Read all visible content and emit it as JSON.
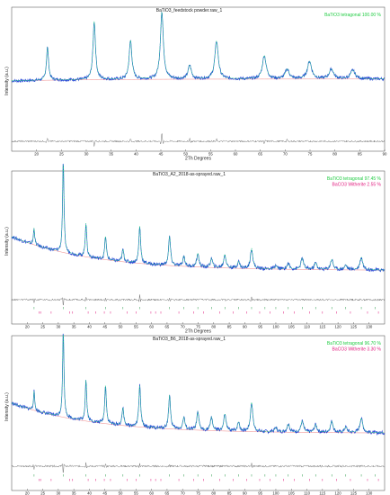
{
  "colors": {
    "observed": "#2346d6",
    "calculated": "#22cc88",
    "difference": "#777777",
    "baseline": "#e85a5a",
    "tetragonal_legend": "#22cc44",
    "witherite_legend": "#e0197d",
    "tetragonal_ticks": "#2a9a4a",
    "witherite_ticks": "#e0197d",
    "axis": "#444444"
  },
  "chart_data": [
    {
      "type": "line",
      "title": "BaTiO3_feedstock powder.raw_1",
      "xlabel": "2Th Degrees",
      "ylabel": "Intensity (a.u.)",
      "xlim": [
        15,
        90
      ],
      "ylim": [
        0,
        100
      ],
      "xticks": [
        20,
        25,
        30,
        35,
        40,
        45,
        50,
        55,
        60,
        65,
        70,
        75,
        80,
        85,
        90
      ],
      "legend_position": "top-right",
      "legend": [
        {
          "label": "BaTiO3 tetragonal  100.00 %",
          "color": "tetragonal_legend"
        }
      ],
      "background": {
        "start": 26,
        "end": 28
      },
      "peaks": [
        {
          "x": 22.2,
          "height": 34
        },
        {
          "x": 31.6,
          "height": 60
        },
        {
          "x": 38.9,
          "height": 40
        },
        {
          "x": 45.2,
          "height": 69
        },
        {
          "x": 50.8,
          "height": 14
        },
        {
          "x": 56.2,
          "height": 39
        },
        {
          "x": 65.8,
          "height": 24
        },
        {
          "x": 70.4,
          "height": 10
        },
        {
          "x": 74.9,
          "height": 18
        },
        {
          "x": 79.3,
          "height": 10
        },
        {
          "x": 83.6,
          "height": 9
        }
      ],
      "difference_spikes": [
        {
          "x": 22.2,
          "value": 4
        },
        {
          "x": 31.6,
          "value": -6
        },
        {
          "x": 38.9,
          "value": 3
        },
        {
          "x": 45.2,
          "value": 10
        },
        {
          "x": 50.8,
          "value": 4
        },
        {
          "x": 56.2,
          "value": 3
        },
        {
          "x": 65.8,
          "value": -3
        },
        {
          "x": 70.4,
          "value": 2
        }
      ],
      "phase_ticks": []
    },
    {
      "type": "line",
      "title": "BaTiO3_A2_2018-as-sprayed.raw_1",
      "xlabel": "2Th Degrees",
      "ylabel": "Intensity (a.u.)",
      "xlim": [
        15,
        135
      ],
      "ylim": [
        0,
        100
      ],
      "xticks": [
        20,
        25,
        30,
        35,
        40,
        45,
        50,
        55,
        60,
        65,
        70,
        75,
        80,
        85,
        90,
        95,
        100,
        105,
        110,
        115,
        120,
        125,
        130
      ],
      "legend_position": "top-right",
      "legend": [
        {
          "label": "BaTiO3 tetragonal  97.45 %",
          "color": "tetragonal_legend"
        },
        {
          "label": "BaCO3 Witherite  2.55 %",
          "color": "witherite_legend"
        }
      ],
      "background": {
        "start": 44,
        "end": 14
      },
      "peaks": [
        {
          "x": 22.2,
          "height": 15
        },
        {
          "x": 31.6,
          "height": 82
        },
        {
          "x": 38.9,
          "height": 30
        },
        {
          "x": 45.2,
          "height": 21
        },
        {
          "x": 50.8,
          "height": 11
        },
        {
          "x": 56.2,
          "height": 33
        },
        {
          "x": 65.8,
          "height": 26
        },
        {
          "x": 70.4,
          "height": 9
        },
        {
          "x": 74.9,
          "height": 12
        },
        {
          "x": 79.3,
          "height": 8
        },
        {
          "x": 83.6,
          "height": 12
        },
        {
          "x": 88.0,
          "height": 6
        },
        {
          "x": 92.2,
          "height": 18
        },
        {
          "x": 100.0,
          "height": 3
        },
        {
          "x": 104.0,
          "height": 5
        },
        {
          "x": 108.5,
          "height": 10
        },
        {
          "x": 112.8,
          "height": 6
        },
        {
          "x": 118.0,
          "height": 9
        },
        {
          "x": 122.5,
          "height": 4
        },
        {
          "x": 127.5,
          "height": 11
        }
      ],
      "difference_spikes": [
        {
          "x": 22.2,
          "value": -3
        },
        {
          "x": 31.6,
          "value": -8
        },
        {
          "x": 38.9,
          "value": 3
        },
        {
          "x": 45.2,
          "value": 3
        },
        {
          "x": 56.2,
          "value": 5
        },
        {
          "x": 65.8,
          "value": 3
        },
        {
          "x": 83.6,
          "value": 2
        },
        {
          "x": 92.2,
          "value": 3
        }
      ],
      "phase_ticks": [
        {
          "phase": "tetragonal",
          "x": [
            22.2,
            31.6,
            38.9,
            45.2,
            50.8,
            56.2,
            65.8,
            70.4,
            74.9,
            79.3,
            83.6,
            88.0,
            92.2,
            96.5,
            100.0,
            104.0,
            108.5,
            112.8,
            118.0,
            122.5,
            127.5,
            132.0
          ]
        },
        {
          "phase": "witherite",
          "x": [
            23.9,
            24.3,
            27.7,
            33.7,
            34.6,
            39.6,
            42.0,
            44.8,
            46.8,
            52.2,
            55.1,
            59.8,
            61.3,
            63.0,
            68.8,
            73.5,
            76.8,
            82.0,
            86.3,
            90.6,
            94.8,
            98.2,
            102.5,
            106.0,
            110.8,
            115.0,
            119.6,
            124.0,
            129.5,
            133.0
          ]
        }
      ]
    },
    {
      "type": "line",
      "title": "BaTiO3_B6_2018-as-sprayed.raw_1",
      "xlabel": "2Th Degrees",
      "ylabel": "Intensity (a.u.)",
      "xlim": [
        15,
        135
      ],
      "ylim": [
        0,
        100
      ],
      "xticks": [
        20,
        25,
        30,
        35,
        40,
        45,
        50,
        55,
        60,
        65,
        70,
        75,
        80,
        85,
        90,
        95,
        100,
        105,
        110,
        115,
        120,
        125,
        130
      ],
      "legend_position": "top-right",
      "legend": [
        {
          "label": "BaTiO3 tetragonal  96.70 %",
          "color": "tetragonal_legend"
        },
        {
          "label": "BaCO3 Witherite  3.30 %",
          "color": "witherite_legend"
        }
      ],
      "background": {
        "start": 42,
        "end": 15
      },
      "peaks": [
        {
          "x": 22.2,
          "height": 17
        },
        {
          "x": 31.6,
          "height": 78
        },
        {
          "x": 38.9,
          "height": 37
        },
        {
          "x": 45.2,
          "height": 35
        },
        {
          "x": 50.8,
          "height": 16
        },
        {
          "x": 56.2,
          "height": 37
        },
        {
          "x": 65.8,
          "height": 30
        },
        {
          "x": 70.4,
          "height": 11
        },
        {
          "x": 74.9,
          "height": 16
        },
        {
          "x": 79.3,
          "height": 12
        },
        {
          "x": 83.6,
          "height": 15
        },
        {
          "x": 88.0,
          "height": 8
        },
        {
          "x": 92.2,
          "height": 26
        },
        {
          "x": 100.0,
          "height": 4
        },
        {
          "x": 104.0,
          "height": 7
        },
        {
          "x": 108.5,
          "height": 10
        },
        {
          "x": 112.8,
          "height": 7
        },
        {
          "x": 118.0,
          "height": 10
        },
        {
          "x": 122.5,
          "height": 5
        },
        {
          "x": 127.5,
          "height": 13
        }
      ],
      "difference_spikes": [
        {
          "x": 22.2,
          "value": -4
        },
        {
          "x": 31.6,
          "value": -9
        },
        {
          "x": 38.9,
          "value": 4
        },
        {
          "x": 45.2,
          "value": 3
        },
        {
          "x": 56.2,
          "value": 4
        },
        {
          "x": 65.8,
          "value": 2
        },
        {
          "x": 92.2,
          "value": 3
        }
      ],
      "phase_ticks": [
        {
          "phase": "tetragonal",
          "x": [
            22.2,
            31.6,
            38.9,
            45.2,
            50.8,
            56.2,
            65.8,
            70.4,
            74.9,
            79.3,
            83.6,
            88.0,
            92.2,
            96.5,
            100.0,
            104.0,
            108.5,
            112.8,
            118.0,
            122.5,
            127.5,
            132.0
          ]
        },
        {
          "phase": "witherite",
          "x": [
            23.9,
            24.3,
            27.7,
            33.7,
            34.6,
            39.6,
            42.0,
            44.8,
            46.8,
            52.2,
            55.1,
            59.8,
            61.3,
            63.0,
            68.8,
            73.5,
            76.8,
            82.0,
            86.3,
            90.6,
            94.8,
            98.2,
            102.5,
            106.0,
            110.8,
            115.0,
            119.6,
            124.0,
            129.5,
            133.0
          ]
        }
      ]
    }
  ]
}
